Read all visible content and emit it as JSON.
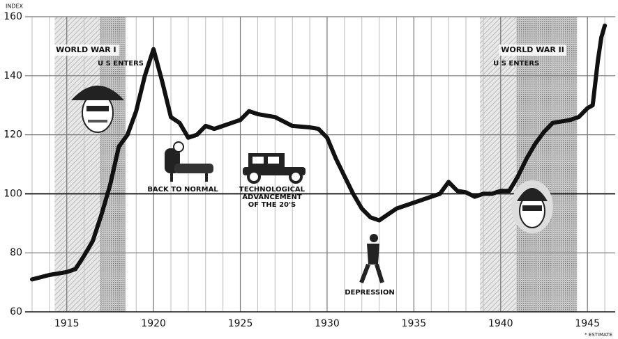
{
  "chart_data": {
    "type": "line",
    "y_axis_label": "INDEX",
    "footnote": "* ESTIMATE",
    "xlim": [
      1912.6,
      1946.6
    ],
    "ylim": [
      60,
      160
    ],
    "xticks": [
      1915,
      1920,
      1925,
      1930,
      1935,
      1940,
      1945
    ],
    "x_minor_ticks": [
      1913,
      1914,
      1915,
      1916,
      1917,
      1918,
      1919,
      1920,
      1921,
      1922,
      1923,
      1924,
      1925,
      1926,
      1927,
      1928,
      1929,
      1930,
      1931,
      1932,
      1933,
      1934,
      1935,
      1936,
      1937,
      1938,
      1939,
      1940,
      1941,
      1942,
      1943,
      1944,
      1945,
      1946
    ],
    "yticks": [
      60,
      80,
      100,
      120,
      140,
      160
    ],
    "reference_line": 100,
    "grid": true,
    "periods": [
      {
        "label": "WORLD WAR I",
        "start": 1914.3,
        "us_enters": 1916.9,
        "end": 1918.4,
        "note": "U S ENTERS"
      },
      {
        "label": "WORLD WAR II",
        "start": 1938.8,
        "us_enters": 1940.9,
        "end": 1944.4,
        "note": "U S ENTERS"
      }
    ],
    "annotations": [
      {
        "text": [
          "BACK TO NORMAL"
        ]
      },
      {
        "text": [
          "TECHNOLOGICAL",
          "ADVANCEMENT",
          "OF THE 20'S"
        ]
      },
      {
        "text": [
          "DEPRESSION"
        ]
      }
    ],
    "series": [
      {
        "color": "#111111",
        "x": [
          1913,
          1914,
          1915,
          1915.5,
          1916,
          1916.5,
          1917,
          1917.5,
          1918,
          1918.5,
          1919,
          1919.5,
          1920,
          1920.5,
          1921,
          1921.5,
          1922,
          1922.5,
          1923,
          1923.5,
          1924,
          1924.5,
          1925,
          1925.5,
          1926,
          1927,
          1928,
          1929,
          1929.5,
          1930,
          1930.5,
          1931,
          1931.5,
          1932,
          1932.5,
          1933,
          1933.5,
          1934,
          1935,
          1936,
          1936.5,
          1937,
          1937.5,
          1938,
          1938.5,
          1939,
          1939.5,
          1940,
          1940.5,
          1941,
          1941.5,
          1942,
          1942.5,
          1943,
          1944,
          1944.5,
          1945,
          1945.3,
          1945.6,
          1945.8,
          1946
        ],
        "values": [
          71,
          72.5,
          73.5,
          74.5,
          79,
          84,
          93,
          103,
          116,
          120,
          128,
          140,
          149,
          138,
          126,
          124,
          119,
          120,
          123,
          122,
          123,
          124,
          125,
          128,
          127,
          126,
          123,
          122.5,
          122,
          119,
          112,
          106,
          100,
          95,
          92,
          91,
          93,
          95,
          97,
          99,
          100,
          104,
          101,
          100.5,
          99,
          100,
          100,
          101,
          101,
          106,
          112,
          117,
          121,
          124,
          125,
          126,
          129,
          130,
          145,
          153,
          157
        ]
      }
    ]
  }
}
